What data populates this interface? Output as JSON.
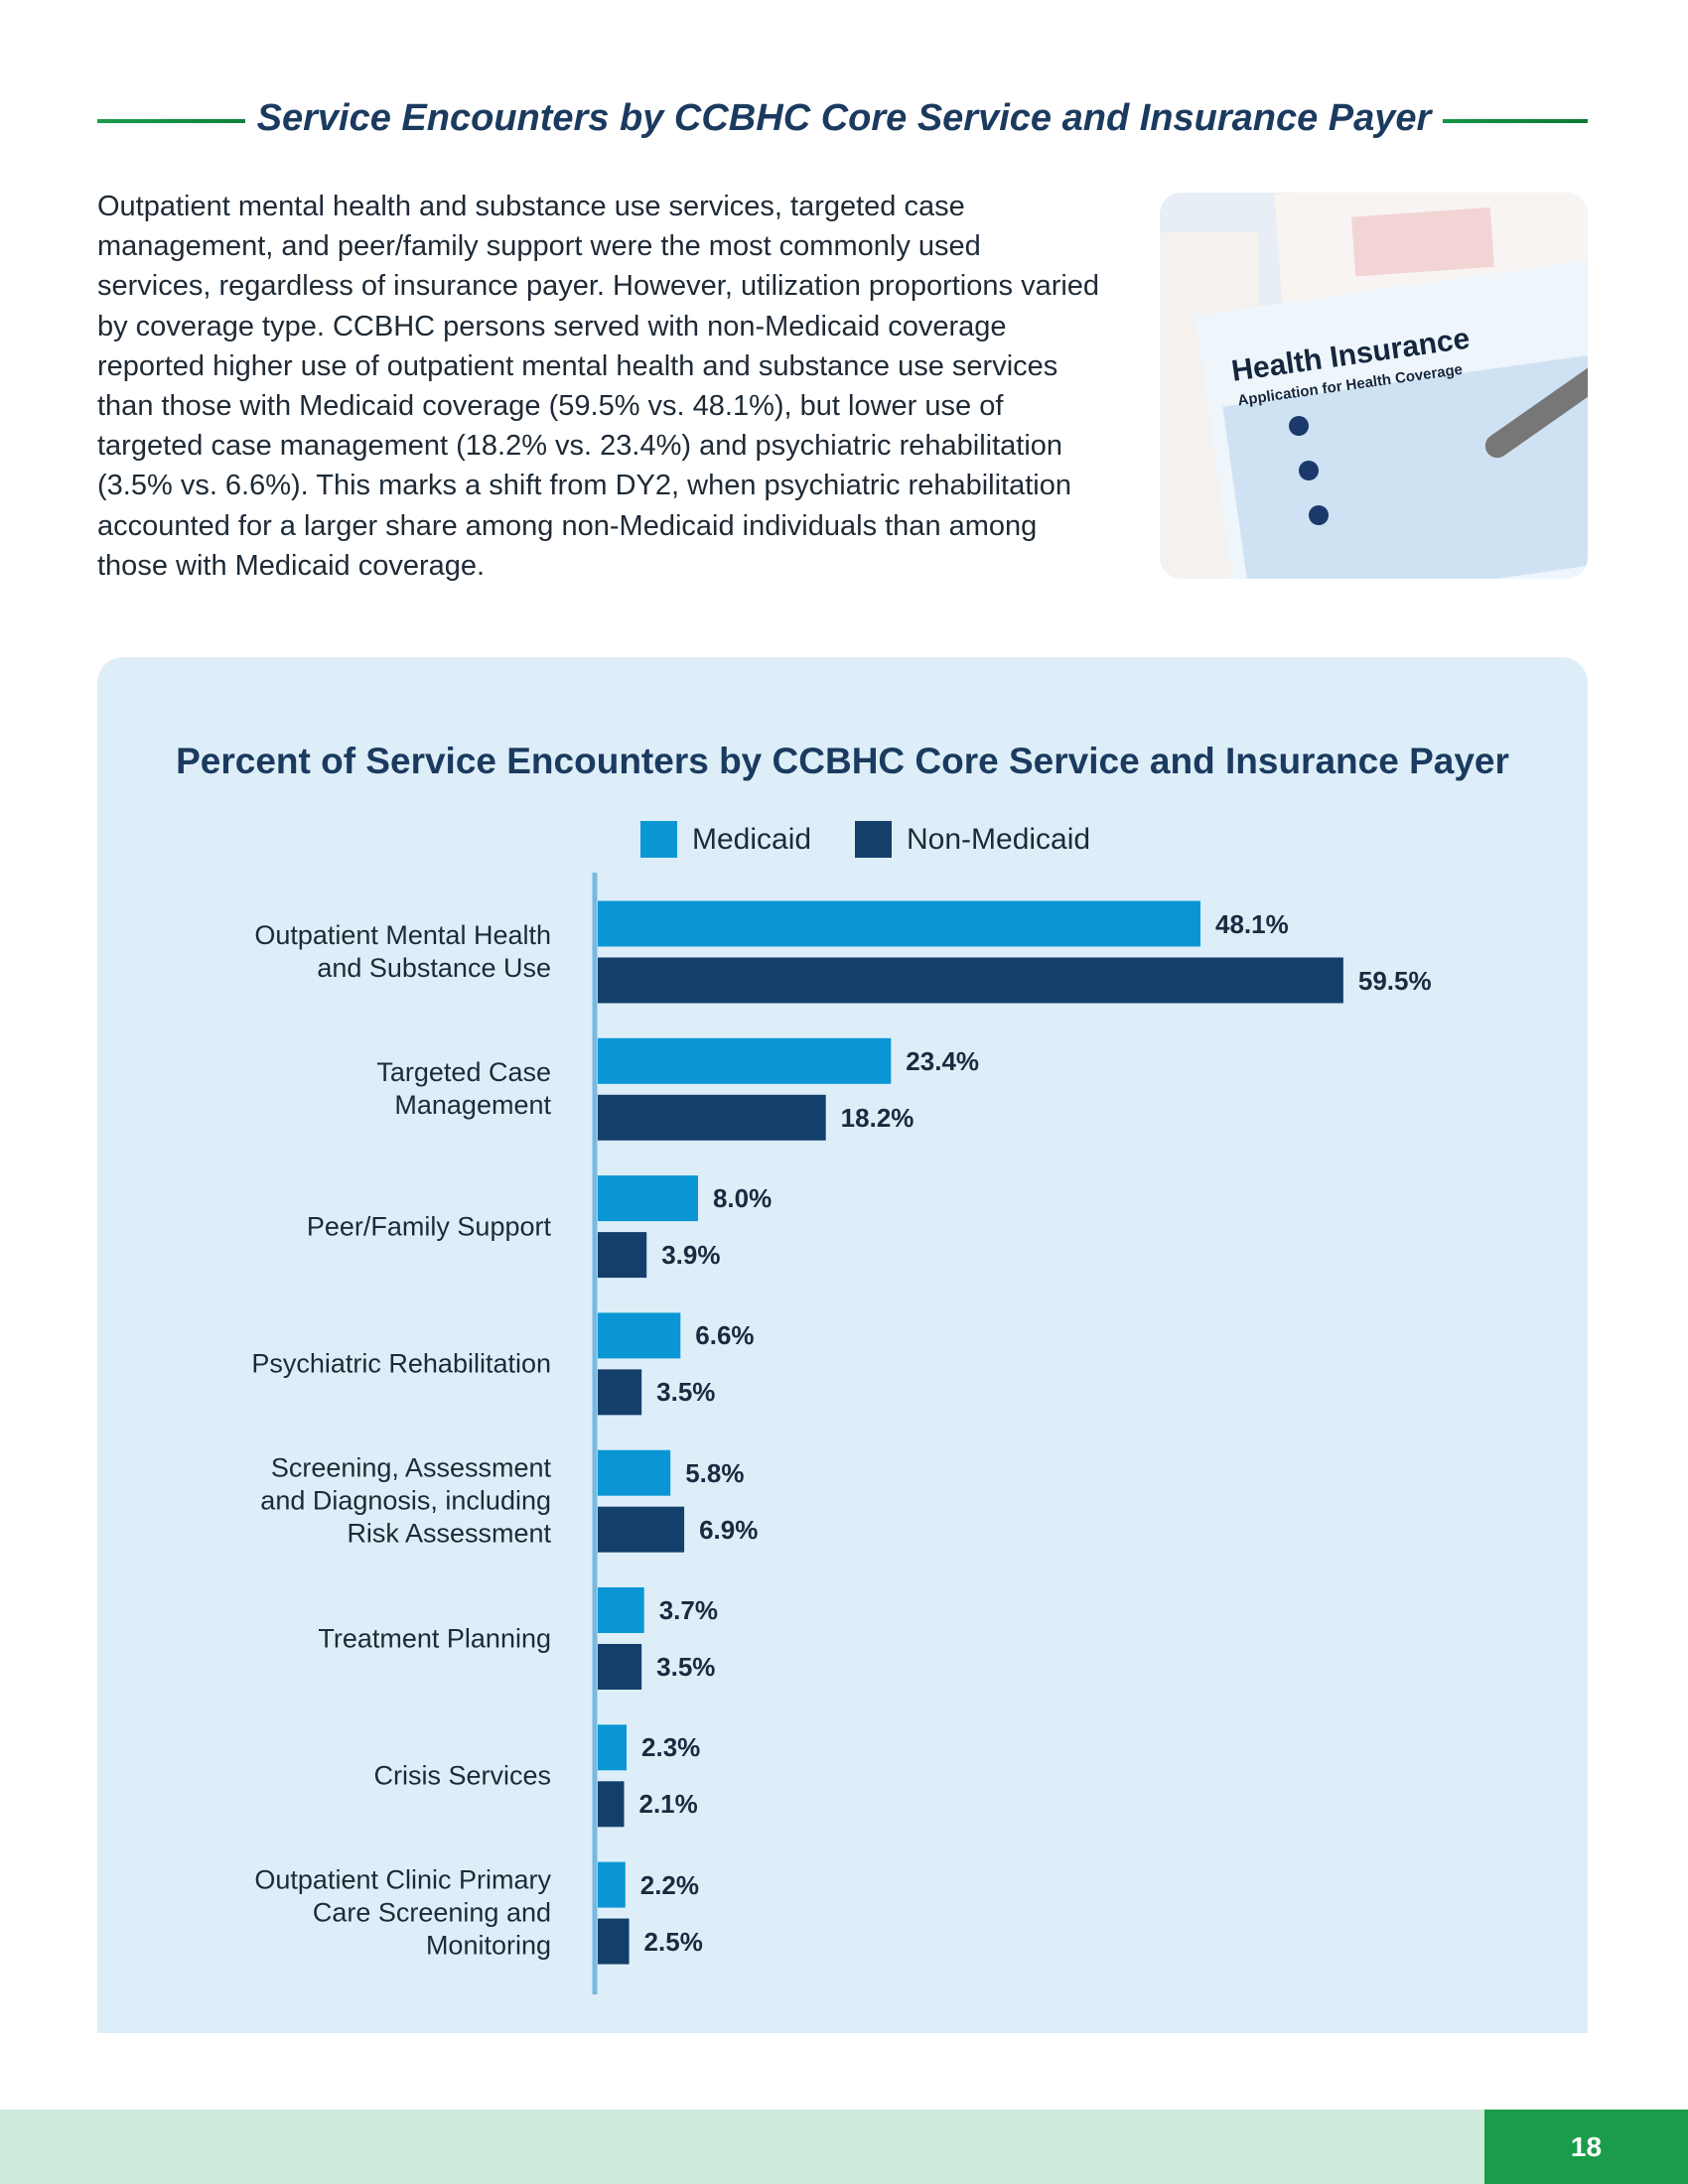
{
  "header": {
    "title": "Service Encounters by CCBHC Core Service and Insurance Payer"
  },
  "paragraph": "Outpatient mental health and substance use services, targeted case management, and peer/family support were the most commonly used services, regardless of insurance payer. However, utilization proportions varied by coverage type. CCBHC persons served with non-Medicaid coverage reported higher use of outpatient mental health and substance use services than those with Medicaid coverage (59.5% vs. 48.1%), but lower use of targeted case management (18.2% vs. 23.4%) and psychiatric rehabilitation (3.5% vs. 6.6%). This marks a shift from DY2, when psychiatric rehabilitation accounted for a larger share among non-Medicaid individuals than among those with Medicaid coverage.",
  "image": {
    "heading": "Health Insurance",
    "subheading": "Application for Health Coverage"
  },
  "chart_data": {
    "type": "bar",
    "orientation": "horizontal",
    "title": "Percent of Service Encounters by CCBHC Core Service and Insurance Payer",
    "categories": [
      "Outpatient Mental Health and Substance Use",
      "Targeted Case Management",
      "Peer/Family Support",
      "Psychiatric Rehabilitation",
      "Screening, Assessment and Diagnosis, including Risk Assessment",
      "Treatment Planning",
      "Crisis Services",
      "Outpatient Clinic Primary Care Screening and Monitoring"
    ],
    "series": [
      {
        "name": "Medicaid",
        "color": "#0a96d4",
        "values": [
          48.1,
          23.4,
          8.0,
          6.6,
          5.8,
          3.7,
          2.3,
          2.2
        ],
        "value_labels": [
          "48.1%",
          "23.4%",
          "8.0%",
          "6.6%",
          "5.8%",
          "3.7%",
          "2.3%",
          "2.2%"
        ]
      },
      {
        "name": "Non-Medicaid",
        "color": "#143f6b",
        "values": [
          59.5,
          18.2,
          3.9,
          3.5,
          6.9,
          3.5,
          2.1,
          2.5
        ],
        "value_labels": [
          "59.5%",
          "18.2%",
          "3.9%",
          "3.5%",
          "6.9%",
          "3.5%",
          "2.1%",
          "2.5%"
        ]
      }
    ]
  },
  "footer": {
    "page_number": "18"
  }
}
